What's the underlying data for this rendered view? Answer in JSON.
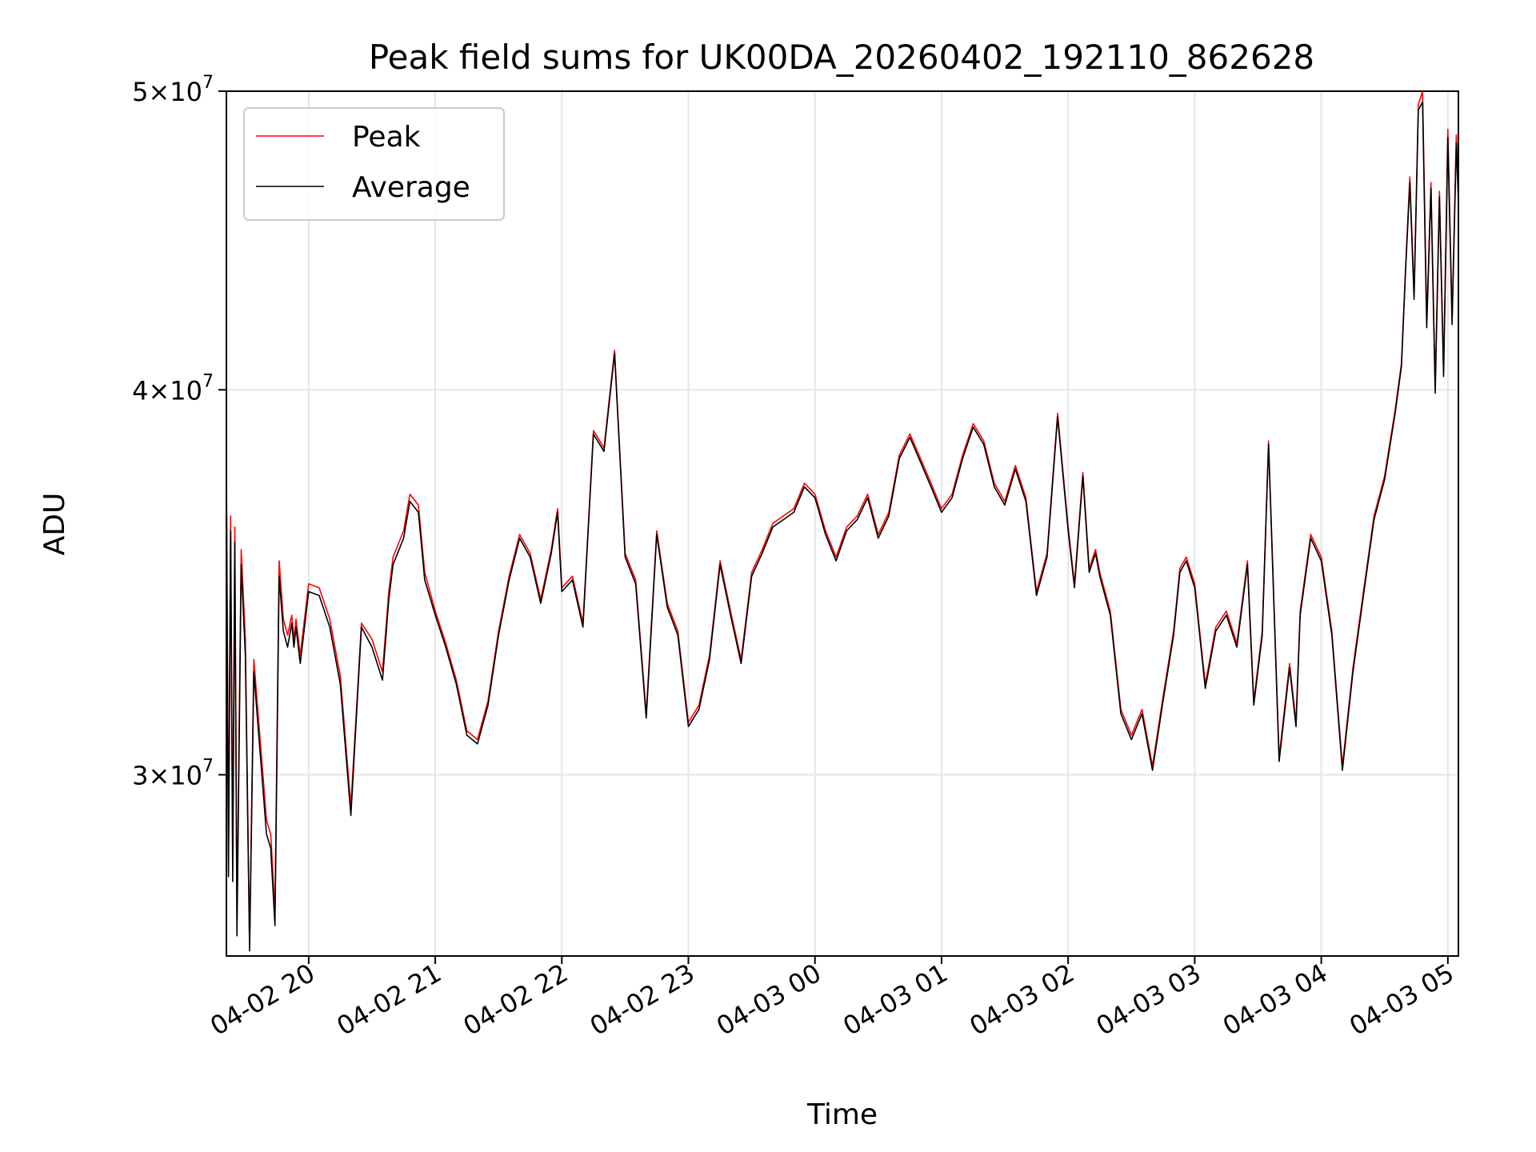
{
  "chart_data": {
    "type": "line",
    "title": "Peak field sums for UK00DA_20260402_192110_862628",
    "xlabel": "Time",
    "ylabel": "ADU",
    "x_range": [
      "04-02 19:21",
      "04-03 05:05"
    ],
    "yscale": "log",
    "ylim": [
      26200000,
      50000000
    ],
    "grid": true,
    "legend_position": "top-left",
    "x_ticks": [
      "04-02 20",
      "04-02 21",
      "04-02 22",
      "04-02 23",
      "04-03 00",
      "04-03 01",
      "04-03 02",
      "04-03 03",
      "04-03 04",
      "04-03 05"
    ],
    "y_ticks": [
      {
        "value": 30000000,
        "mantissa": "3",
        "base": "10",
        "exp": "7"
      },
      {
        "value": 40000000,
        "mantissa": "4",
        "base": "10",
        "exp": "7"
      },
      {
        "value": 50000000,
        "mantissa": "5",
        "base": "10",
        "exp": "7"
      }
    ],
    "x": [
      "04-02 19:21",
      "04-02 19:22",
      "04-02 19:23",
      "04-02 19:24",
      "04-02 19:25",
      "04-02 19:26",
      "04-02 19:28",
      "04-02 19:30",
      "04-02 19:32",
      "04-02 19:34",
      "04-02 19:36",
      "04-02 19:38",
      "04-02 19:40",
      "04-02 19:42",
      "04-02 19:44",
      "04-02 19:46",
      "04-02 19:48",
      "04-02 19:50",
      "04-02 19:52",
      "04-02 19:53",
      "04-02 19:54",
      "04-02 19:56",
      "04-02 20:00",
      "04-02 20:05",
      "04-02 20:10",
      "04-02 20:15",
      "04-02 20:20",
      "04-02 20:25",
      "04-02 20:30",
      "04-02 20:35",
      "04-02 20:38",
      "04-02 20:40",
      "04-02 20:45",
      "04-02 20:48",
      "04-02 20:52",
      "04-02 20:55",
      "04-02 21:00",
      "04-02 21:05",
      "04-02 21:10",
      "04-02 21:15",
      "04-02 21:20",
      "04-02 21:25",
      "04-02 21:30",
      "04-02 21:35",
      "04-02 21:40",
      "04-02 21:45",
      "04-02 21:50",
      "04-02 21:55",
      "04-02 21:58",
      "04-02 22:00",
      "04-02 22:05",
      "04-02 22:10",
      "04-02 22:15",
      "04-02 22:20",
      "04-02 22:25",
      "04-02 22:30",
      "04-02 22:35",
      "04-02 22:40",
      "04-02 22:45",
      "04-02 22:50",
      "04-02 22:55",
      "04-02 23:00",
      "04-02 23:05",
      "04-02 23:10",
      "04-02 23:15",
      "04-02 23:20",
      "04-02 23:25",
      "04-02 23:30",
      "04-02 23:35",
      "04-02 23:40",
      "04-02 23:45",
      "04-02 23:50",
      "04-02 23:55",
      "04-03 00:00",
      "04-03 00:05",
      "04-03 00:10",
      "04-03 00:15",
      "04-03 00:20",
      "04-03 00:25",
      "04-03 00:30",
      "04-03 00:35",
      "04-03 00:40",
      "04-03 00:45",
      "04-03 00:50",
      "04-03 00:55",
      "04-03 01:00",
      "04-03 01:05",
      "04-03 01:10",
      "04-03 01:15",
      "04-03 01:20",
      "04-03 01:25",
      "04-03 01:30",
      "04-03 01:35",
      "04-03 01:40",
      "04-03 01:45",
      "04-03 01:50",
      "04-03 01:55",
      "04-03 02:00",
      "04-03 02:03",
      "04-03 02:07",
      "04-03 02:10",
      "04-03 02:13",
      "04-03 02:15",
      "04-03 02:20",
      "04-03 02:25",
      "04-03 02:30",
      "04-03 02:35",
      "04-03 02:40",
      "04-03 02:45",
      "04-03 02:50",
      "04-03 02:53",
      "04-03 02:56",
      "04-03 03:00",
      "04-03 03:05",
      "04-03 03:10",
      "04-03 03:15",
      "04-03 03:20",
      "04-03 03:25",
      "04-03 03:28",
      "04-03 03:32",
      "04-03 03:35",
      "04-03 03:40",
      "04-03 03:45",
      "04-03 03:48",
      "04-03 03:50",
      "04-03 03:55",
      "04-03 04:00",
      "04-03 04:05",
      "04-03 04:10",
      "04-03 04:15",
      "04-03 04:20",
      "04-03 04:25",
      "04-03 04:30",
      "04-03 04:35",
      "04-03 04:38",
      "04-03 04:40",
      "04-03 04:42",
      "04-03 04:44",
      "04-03 04:46",
      "04-03 04:48",
      "04-03 04:50",
      "04-03 04:52",
      "04-03 04:54",
      "04-03 04:56",
      "04-03 04:58",
      "04-03 05:00",
      "04-03 05:02",
      "04-03 05:04",
      "04-03 05:05"
    ],
    "series": [
      {
        "name": "Peak",
        "color": "#ff0000",
        "values": [
          38000000,
          28200000,
          36400000,
          28100000,
          36100000,
          26900000,
          35500000,
          33200000,
          26400000,
          32700000,
          31400000,
          30200000,
          29000000,
          28700000,
          27100000,
          35200000,
          33700000,
          33300000,
          33800000,
          33200000,
          33700000,
          32800000,
          34600000,
          34500000,
          33700000,
          32300000,
          29300000,
          33600000,
          33200000,
          32400000,
          34400000,
          35300000,
          36000000,
          37000000,
          36700000,
          34900000,
          33900000,
          33100000,
          32200000,
          31000000,
          30800000,
          31700000,
          33400000,
          34800000,
          35900000,
          35400000,
          34200000,
          35500000,
          36600000,
          34500000,
          34800000,
          33600000,
          38800000,
          38300000,
          41200000,
          35400000,
          34700000,
          31400000,
          36000000,
          34100000,
          33400000,
          31200000,
          31600000,
          32800000,
          35200000,
          33900000,
          32700000,
          34900000,
          35500000,
          36200000,
          36400000,
          36600000,
          37300000,
          37000000,
          36000000,
          35300000,
          36100000,
          36400000,
          37000000,
          35900000,
          36500000,
          38100000,
          38700000,
          38000000,
          37300000,
          36600000,
          37000000,
          38100000,
          39000000,
          38500000,
          37300000,
          36800000,
          37800000,
          36900000,
          34400000,
          35400000,
          39300000,
          36100000,
          34600000,
          37600000,
          35000000,
          35500000,
          34900000,
          33900000,
          31500000,
          30900000,
          31500000,
          30200000,
          31800000,
          33400000,
          35000000,
          35300000,
          34600000,
          32100000,
          33500000,
          33900000,
          33100000,
          35200000,
          31700000,
          33400000,
          38500000,
          30400000,
          32600000,
          31200000,
          33900000,
          35900000,
          35300000,
          33400000,
          30200000,
          32500000,
          34400000,
          36400000,
          37500000,
          39400000,
          40800000,
          43900000,
          46900000,
          43000000,
          49500000,
          50000000,
          42100000,
          46700000,
          40100000,
          46400000,
          40600000,
          48600000,
          42200000,
          48400000,
          46300000
        ]
      },
      {
        "name": "Average",
        "color": "#000000",
        "values": [
          37600000,
          27800000,
          36000000,
          27700000,
          35700000,
          26600000,
          35100000,
          32800000,
          26300000,
          32400000,
          31100000,
          29900000,
          28700000,
          28400000,
          26800000,
          34800000,
          33400000,
          33000000,
          33600000,
          33000000,
          33500000,
          32600000,
          34400000,
          34300000,
          33500000,
          32100000,
          29100000,
          33500000,
          33000000,
          32200000,
          34200000,
          35100000,
          35800000,
          36800000,
          36500000,
          34700000,
          33800000,
          33000000,
          32100000,
          30900000,
          30700000,
          31600000,
          33300000,
          34700000,
          35800000,
          35300000,
          34100000,
          35400000,
          36500000,
          34400000,
          34700000,
          33500000,
          38700000,
          38200000,
          41100000,
          35300000,
          34600000,
          31300000,
          35900000,
          34000000,
          33300000,
          31100000,
          31500000,
          32700000,
          35100000,
          33800000,
          32600000,
          34800000,
          35400000,
          36100000,
          36300000,
          36500000,
          37200000,
          36900000,
          35900000,
          35200000,
          36000000,
          36300000,
          36900000,
          35800000,
          36400000,
          38000000,
          38600000,
          37900000,
          37200000,
          36500000,
          36900000,
          38000000,
          38900000,
          38400000,
          37200000,
          36700000,
          37700000,
          36800000,
          34300000,
          35300000,
          39200000,
          36000000,
          34500000,
          37500000,
          34900000,
          35400000,
          34800000,
          33800000,
          31400000,
          30800000,
          31400000,
          30100000,
          31700000,
          33300000,
          34900000,
          35200000,
          34500000,
          32000000,
          33400000,
          33800000,
          33000000,
          35100000,
          31600000,
          33300000,
          38400000,
          30300000,
          32500000,
          31100000,
          33800000,
          35800000,
          35200000,
          33300000,
          30100000,
          32400000,
          34300000,
          36300000,
          37400000,
          39300000,
          40700000,
          43800000,
          46700000,
          42800000,
          49300000,
          49600000,
          41900000,
          46500000,
          39900000,
          46200000,
          40400000,
          48300000,
          42000000,
          48100000,
          46000000
        ]
      }
    ]
  }
}
